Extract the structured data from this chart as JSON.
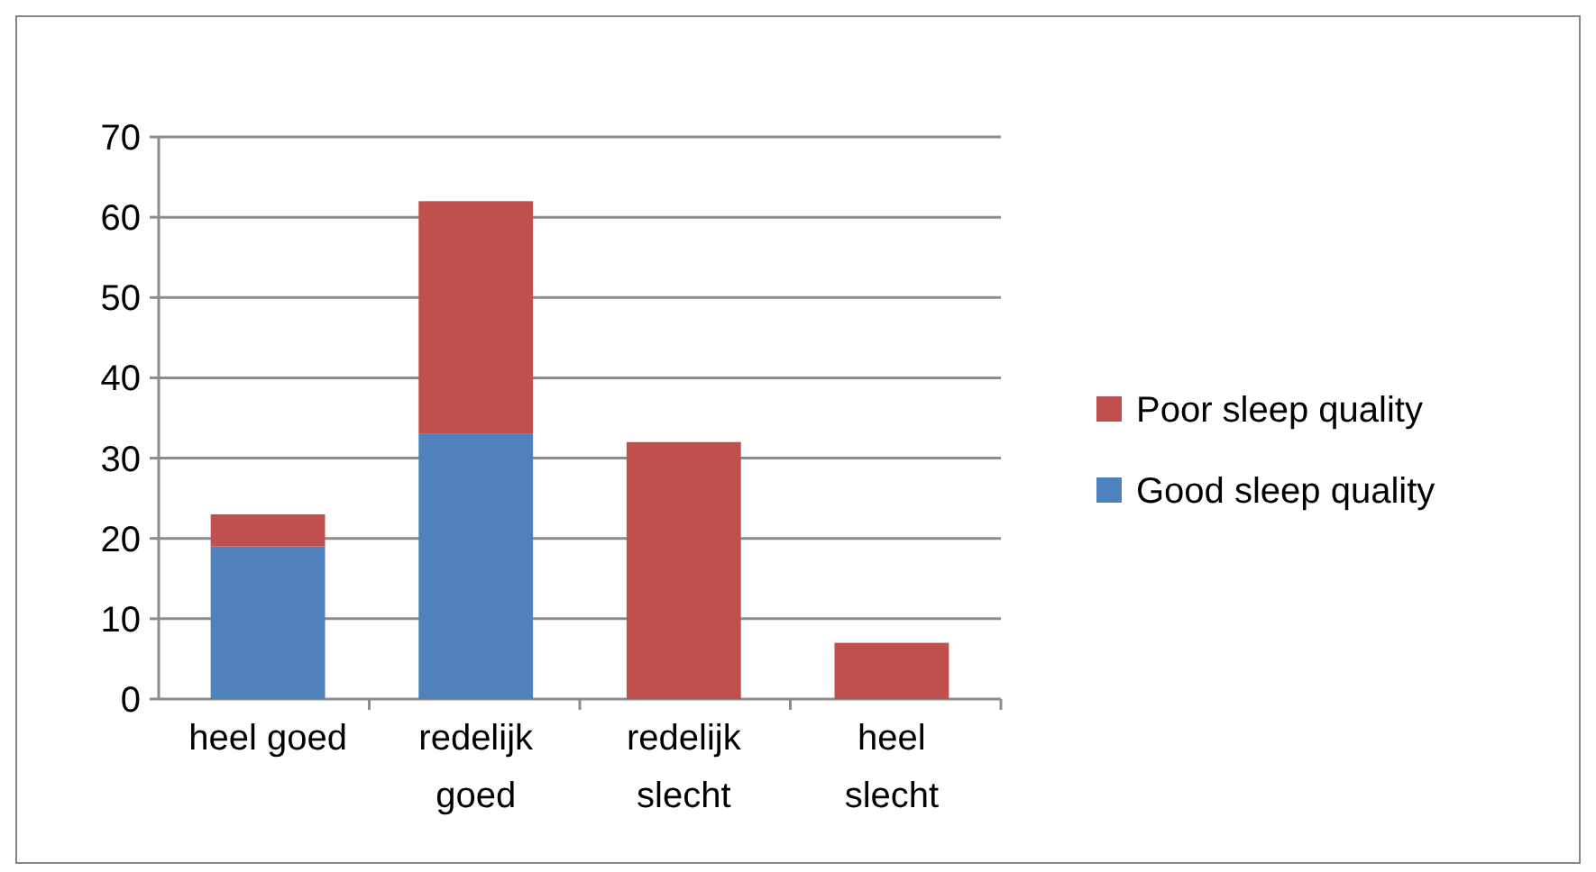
{
  "chart_data": {
    "type": "bar",
    "stacked": true,
    "categories": [
      "heel goed",
      "redelijk goed",
      "redelijk slecht",
      "heel slecht"
    ],
    "series": [
      {
        "name": "Good sleep quality",
        "color": "#4f81bd",
        "values": [
          19,
          33,
          0,
          0
        ]
      },
      {
        "name": "Poor sleep quality",
        "color": "#c0504d",
        "values": [
          4,
          29,
          32,
          7
        ]
      }
    ],
    "ylim": [
      0,
      70
    ],
    "yticks": [
      0,
      10,
      20,
      30,
      40,
      50,
      60,
      70
    ],
    "grid": "y",
    "legend": "right"
  }
}
